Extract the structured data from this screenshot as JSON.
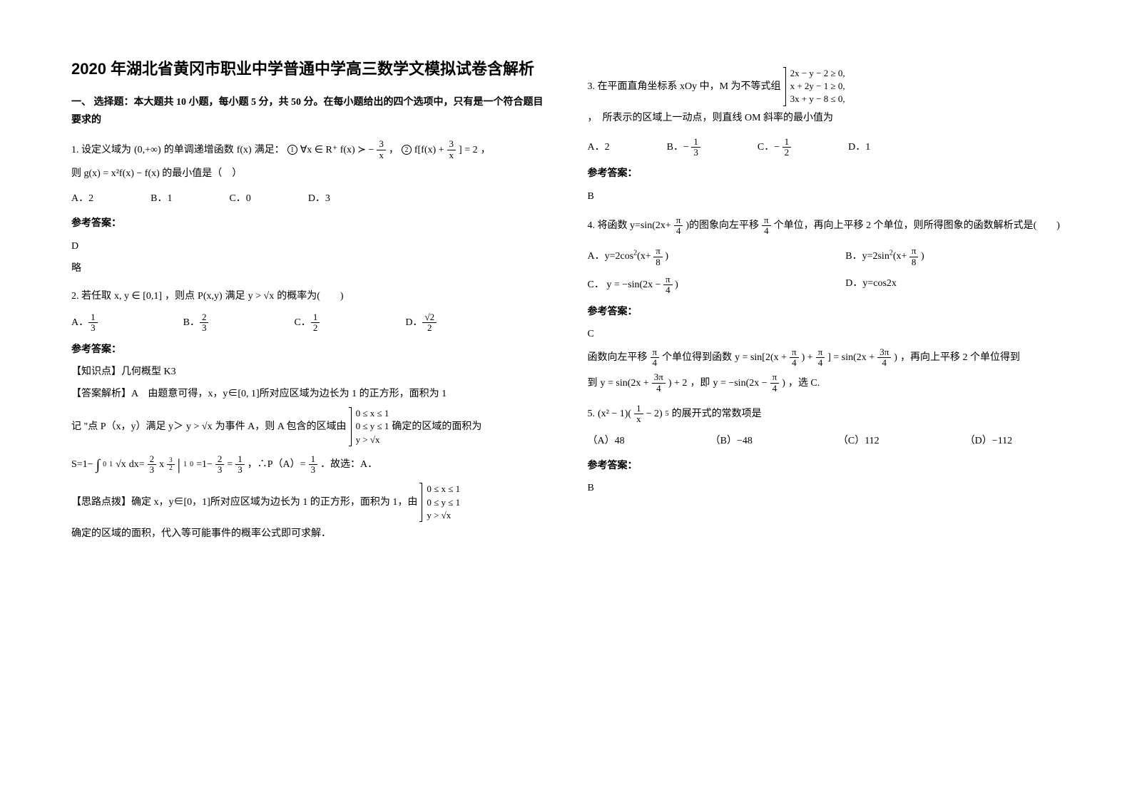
{
  "title": "2020 年湖北省黄冈市职业中学普通中学高三数学文模拟试卷含解析",
  "section1_head": "一、 选择题：本大题共 10 小题，每小题 5 分，共 50 分。在每小题给出的四个选项中，只有是一个符合题目要求的",
  "q1": {
    "stem_a": "1. 设定义域为",
    "domain": "(0,+∞)",
    "stem_b": "的单调递增函数",
    "fn": "f(x)",
    "stem_c": "满足：",
    "cond1_pre": "∀x ∈ R⁺  f(x) ≻ −",
    "cond1_frac_n": "3",
    "cond1_frac_d": "x",
    "cond2": "f[f(x) + ",
    "cond2_frac_n": "3",
    "cond2_frac_d": "x",
    "cond2_end": "] = 2",
    "g_line": "则 g(x) = x²f(x) − f(x) 的最小值是（　）",
    "opts": [
      "A．2",
      "B．1",
      "C．0",
      "D．3"
    ],
    "ans": "D",
    "exp": "略"
  },
  "q2": {
    "stem_a": "2. 若任取",
    "xy": "x, y ∈ [0,1]",
    "stem_b": "，则点",
    "pxy": "P(x,y)",
    "stem_c": "满足",
    "ineq": "y > √x",
    "stem_d": "的概率为(　　)",
    "optA_n": "1",
    "optA_d": "3",
    "optB_n": "2",
    "optB_d": "3",
    "optC_n": "1",
    "optC_d": "2",
    "optD_n": "√2",
    "optD_d": "2",
    "ans_lbl": "参考答案：",
    "kp": "【知识点】几何概型 K3",
    "exp1": "【答案解析】A　由题意可得，x，y∈[0, 1]所对应区域为边长为 1 的正方形，面积为 1",
    "exp2a": "记 \"点 P（x，y）满足 y＞",
    "exp2b": "为事件 A，则 A 包含的区域由",
    "case1": "0 ≤ x ≤ 1",
    "case2": "0 ≤ y ≤ 1",
    "case3": "y > √x",
    "exp2c": "确定的区域的面积为",
    "s_line_a": "S=1−",
    "int_pre": "∫",
    "int_lo": "0",
    "int_hi": "1",
    "int_body": "√x",
    "s_line_b": "dx=",
    "s_frac1_n": "2",
    "s_frac1_d": "3",
    "s_mid": "x",
    "s_exp_n": "3",
    "s_exp_d": "2",
    "s_bar": "|",
    "s_bar_hi": "1",
    "s_bar_lo": "0",
    "s_line_c": "=1−",
    "s_frac2_n": "2",
    "s_frac2_d": "3",
    "s_line_d": "=",
    "s_frac3_n": "1",
    "s_frac3_d": "3",
    "s_line_e": "，∴P（A）=",
    "s_frac4_n": "1",
    "s_frac4_d": "3",
    "s_line_f": "．故选：A．",
    "think_a": "【思路点拨】确定 x，y∈[0，1]所对应区域为边长为 1 的正方形，面积为 1，由",
    "think_b": "确定的区域的面积，代入等可能事件的概率公式即可求解．"
  },
  "q3": {
    "stem_a": "3. 在平面直角坐标系 xOy 中，M 为不等式组",
    "c1": "2x − y − 2 ≥ 0,",
    "c2": "x + 2y − 1 ≥ 0,",
    "c3": "3x + y − 8 ≤ 0,",
    "stem_b": "，　所表示的区域上一动点，则直线 OM 斜率的最小值为",
    "optA": "A．2",
    "optB_pre": "B．",
    "optB_sign": "−",
    "optB_n": "1",
    "optB_d": "3",
    "optC_pre": "C．",
    "optC_sign": "−",
    "optC_n": "1",
    "optC_d": "2",
    "optD": "D．1",
    "ans": "B"
  },
  "q4": {
    "stem_a": "4. 将函数 y=sin(2x+",
    "f_n": "π",
    "f_d": "4",
    "stem_b": ")的图象向左平移",
    "stem_c": "个单位，再向上平移 2 个单位，则所得图象的函数解析式是(　　)",
    "optA_pre": "A．y=2cos",
    "optA_sq": "2",
    "optA_post": "(x+",
    "optA_n": "π",
    "optA_d": "8",
    "optA_end": ")",
    "optB_pre": "B．y=2sin",
    "optB_sq": "2",
    "optB_post": "(x+",
    "optB_n": "π",
    "optB_d": "8",
    "optB_end": ")",
    "optC_pre": "C．",
    "optC_math": "y = −sin(2x − ",
    "optC_n": "π",
    "optC_d": "4",
    "optC_end": ")",
    "optD": "D．y=cos2x",
    "ans": "C",
    "exp1a": "函数向左平移",
    "exp1b": "个单位得到函数",
    "exp_math1": "y = sin[2(x + ",
    "exp_m1_n": "π",
    "exp_m1_d": "4",
    "exp_math1b": ") + ",
    "exp_math1c": "] = sin(2x + ",
    "exp_m1c_n": "3π",
    "exp_m1c_d": "4",
    "exp_math1d": ")",
    "exp1c": "，再向上平移 2 个单位得到",
    "exp2a": "到",
    "exp_math2": "y = sin(2x + ",
    "exp_m2_n": "3π",
    "exp_m2_d": "4",
    "exp_math2b": ") + 2",
    "exp2b": "，即",
    "exp_math3": "y = −sin(2x − ",
    "exp_m3_n": "π",
    "exp_m3_d": "4",
    "exp_math3b": ")",
    "exp2c": "，选 C."
  },
  "q5": {
    "stem_a": "5.",
    "math_a": "(x² − 1)(",
    "math_frac_n": "1",
    "math_frac_d": "x",
    "math_b": " − 2)",
    "math_exp": "5",
    "stem_b": "的展开式的常数项是",
    "optA": "（A）48",
    "optB": "（B）−48",
    "optC": "（C）112",
    "optD": "（D）−112",
    "ans": "B"
  },
  "ans_label": "参考答案："
}
